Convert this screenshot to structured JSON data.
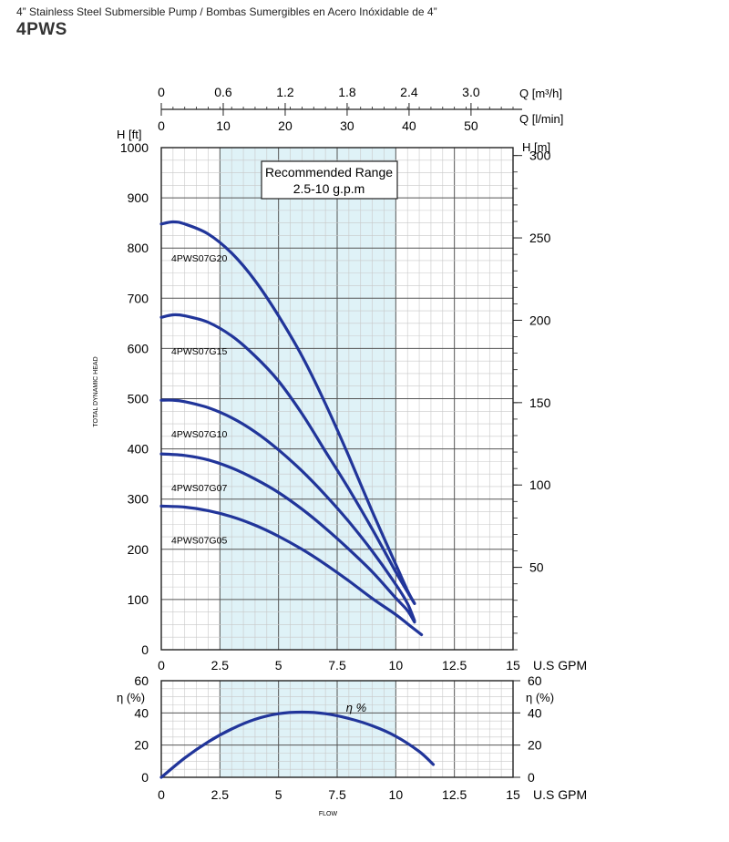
{
  "header": {
    "subtitle": "4” Stainless Steel Submersible Pump / Bombas Sumergibles en Acero Inóxidable de 4”",
    "title": "4PWS"
  },
  "colors": {
    "curve": "#21359a",
    "band": "#dff2f7",
    "grid_minor": "#c8c8c8",
    "grid_major": "#555555"
  },
  "chart_data": [
    {
      "type": "line",
      "title": "",
      "xlabel": "U.S GPM",
      "ylabel": "H [ft]",
      "ylabel_right": "H [m]",
      "axis_title_vertical": "TOTAL DYNAMIC HEAD",
      "xlim": [
        0,
        15
      ],
      "ylim": [
        0,
        1000
      ],
      "x_ticks": [
        "0",
        "2.5",
        "5",
        "7.5",
        "10",
        "12.5",
        "15"
      ],
      "y_ticks": [
        "0",
        "100",
        "200",
        "300",
        "400",
        "500",
        "600",
        "700",
        "800",
        "900",
        "1000"
      ],
      "y_right_ticks": [
        "50",
        "100",
        "150",
        "200",
        "250",
        "300"
      ],
      "top_axis_m3h": {
        "label": "Q [m³/h]",
        "ticks": [
          "0",
          "0.6",
          "1.2",
          "1.8",
          "2.4",
          "3.0"
        ]
      },
      "top_axis_lmin": {
        "label": "Q [l/min]",
        "ticks": [
          "0",
          "10",
          "20",
          "30",
          "40",
          "50"
        ]
      },
      "recommended_range": {
        "title": "Recommended Range",
        "text": "2.5-10 g.p.m",
        "from": 2.5,
        "to": 10
      },
      "series": [
        {
          "name": "4PWS07G20",
          "x": [
            0,
            0.5,
            1,
            2,
            3,
            4,
            5,
            6,
            7,
            8,
            9,
            10,
            10.5,
            10.8
          ],
          "y": [
            848,
            852,
            848,
            828,
            790,
            735,
            665,
            585,
            490,
            385,
            275,
            170,
            118,
            92
          ]
        },
        {
          "name": "4PWS07G15",
          "x": [
            0,
            0.5,
            1,
            2,
            3,
            4,
            5,
            6,
            7,
            8,
            9,
            10,
            10.5,
            10.8
          ],
          "y": [
            662,
            667,
            665,
            652,
            625,
            585,
            535,
            470,
            395,
            320,
            240,
            155,
            115,
            92
          ]
        },
        {
          "name": "4PWS07G10",
          "x": [
            0,
            0.5,
            1,
            2,
            3,
            4,
            5,
            6,
            7,
            8,
            9,
            10,
            10.5,
            10.8
          ],
          "y": [
            497,
            497,
            494,
            482,
            462,
            434,
            398,
            356,
            308,
            255,
            196,
            130,
            92,
            58
          ]
        },
        {
          "name": "4PWS07G07",
          "x": [
            0,
            1,
            2,
            3,
            4,
            5,
            6,
            7,
            8,
            9,
            10,
            10.5,
            10.8
          ],
          "y": [
            390,
            387,
            378,
            362,
            340,
            313,
            280,
            242,
            200,
            155,
            103,
            78,
            55
          ]
        },
        {
          "name": "4PWS07G05",
          "x": [
            0,
            1,
            2,
            3,
            4,
            5,
            6,
            7,
            8,
            9,
            10,
            10.6,
            11.1
          ],
          "y": [
            286,
            284,
            277,
            265,
            248,
            226,
            200,
            170,
            137,
            102,
            70,
            48,
            30
          ]
        }
      ]
    },
    {
      "type": "line",
      "title": "",
      "xlabel": "U.S GPM",
      "xlabel_below": "FLOW",
      "ylabel": "η (%)",
      "ylabel_right": "η (%)",
      "xlim": [
        0,
        15
      ],
      "ylim": [
        0,
        60
      ],
      "x_ticks": [
        "0",
        "2.5",
        "5",
        "7.5",
        "10",
        "12.5",
        "15"
      ],
      "y_ticks": [
        "0",
        "20",
        "40",
        "60"
      ],
      "series": [
        {
          "name": "η %",
          "x": [
            0,
            1,
            2,
            3,
            4,
            5,
            6,
            7,
            8,
            9,
            10,
            11,
            11.6
          ],
          "y": [
            0,
            12,
            22,
            30,
            36,
            39.5,
            40.5,
            39.5,
            36.5,
            32,
            25.5,
            16,
            8
          ]
        }
      ]
    }
  ]
}
